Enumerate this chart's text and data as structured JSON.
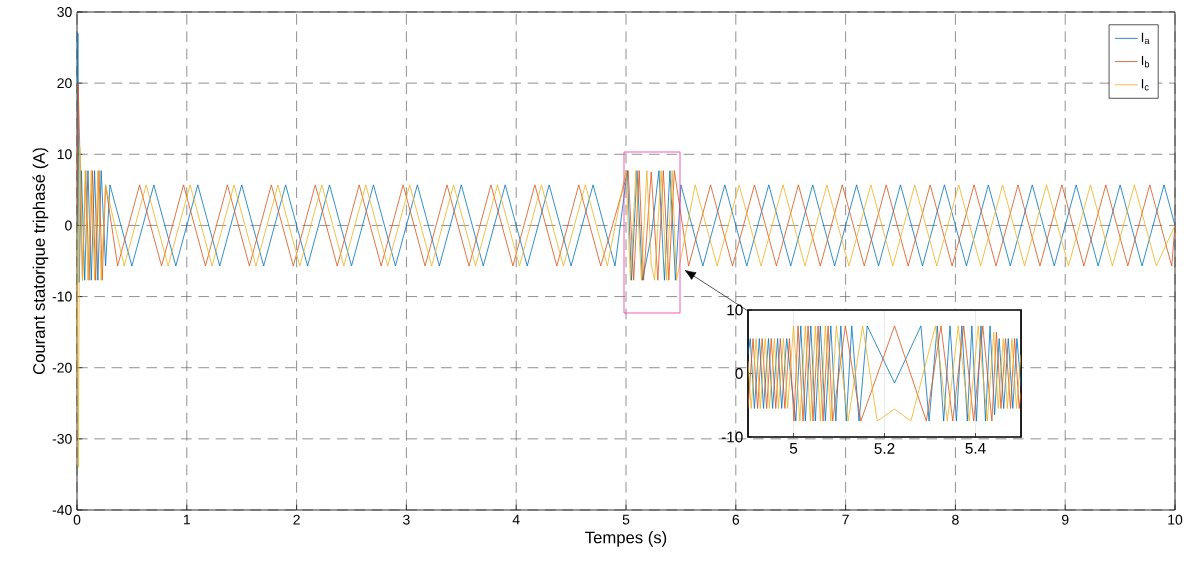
{
  "chart_data": [
    {
      "type": "line",
      "xlabel": "Tempes (s)",
      "ylabel": "Courant statorique triphasé (A)",
      "xlim": [
        0,
        10
      ],
      "xticks": [
        0,
        1,
        2,
        3,
        4,
        5,
        6,
        7,
        8,
        9,
        10
      ],
      "ylim": [
        -40,
        30
      ],
      "yticks": [
        -40,
        -30,
        -20,
        -10,
        0,
        10,
        20,
        30
      ],
      "grid": true,
      "legend": "top right",
      "series": [
        {
          "name": "I$_{a}$",
          "color": "#0072bd",
          "x": [
            0,
            0.008,
            0.02,
            0.04,
            0.07,
            0.1,
            0.13,
            0.16,
            0.19,
            0.22,
            0.26,
            0.3,
            0.5,
            0.7,
            0.9,
            1.1,
            1.3,
            1.5,
            1.7,
            1.9,
            2.1,
            2.3,
            2.5,
            2.7,
            2.9,
            3.1,
            3.3,
            3.5,
            3.7,
            3.9,
            4.1,
            4.3,
            4.5,
            4.7,
            4.9,
            5.012,
            5.05,
            5.1,
            5.15,
            5.23,
            5.3,
            5.35,
            5.4,
            5.45,
            5.5,
            5.7,
            5.9,
            6.1,
            6.3,
            6.5,
            6.7,
            6.9,
            7.1,
            7.3,
            7.5,
            7.7,
            7.9,
            8.1,
            8.3,
            8.5,
            8.7,
            8.9,
            9.1,
            9.3,
            9.5,
            9.7,
            9.9,
            10
          ],
          "values": [
            0,
            27,
            -8,
            7.7,
            -7.7,
            7.7,
            -7.7,
            7.7,
            -7.7,
            7.7,
            -5.7,
            5.7,
            -5.7,
            5.7,
            -5.7,
            5.7,
            -5.7,
            5.7,
            -5.7,
            5.7,
            -5.7,
            5.7,
            -5.7,
            5.7,
            -5.7,
            5.7,
            -5.7,
            5.7,
            -5.7,
            5.7,
            -5.7,
            5.7,
            -5.7,
            5.7,
            -5.7,
            7.7,
            -7.7,
            7.7,
            -7.7,
            -1.5,
            7.7,
            -7.7,
            7.7,
            -7.7,
            5.7,
            -5.7,
            5.7,
            -5.7,
            5.7,
            -5.7,
            5.7,
            -5.7,
            5.7,
            -5.7,
            5.7,
            -5.7,
            5.7,
            -5.7,
            5.7,
            -5.7,
            5.7,
            -5.7,
            5.7,
            -5.7,
            5.7,
            -5.7,
            5.7,
            0
          ]
        },
        {
          "name": "I$_{b}$",
          "color": "#d95319",
          "x": [
            0,
            0.01,
            0.03,
            0.05,
            0.08,
            0.11,
            0.14,
            0.17,
            0.2,
            0.23,
            0.26,
            0.37,
            0.57,
            0.77,
            0.97,
            1.17,
            1.37,
            1.57,
            1.77,
            1.97,
            2.17,
            2.37,
            2.57,
            2.77,
            2.97,
            3.17,
            3.37,
            3.57,
            3.77,
            3.97,
            4.17,
            4.37,
            4.57,
            4.77,
            5.02,
            5.07,
            5.12,
            5.16,
            5.23,
            5.29,
            5.34,
            5.39,
            5.44,
            5.57,
            5.77,
            5.97,
            6.17,
            6.37,
            6.57,
            6.77,
            6.97,
            7.17,
            7.37,
            7.57,
            7.77,
            7.97,
            8.17,
            8.37,
            8.57,
            8.77,
            8.97,
            9.17,
            9.37,
            9.57,
            9.77,
            9.97,
            10
          ],
          "values": [
            0,
            20,
            8,
            -7.7,
            7.7,
            -7.7,
            7.7,
            -7.7,
            7.7,
            -7.7,
            5.7,
            -5.7,
            5.7,
            -5.7,
            5.7,
            -5.7,
            5.7,
            -5.7,
            5.7,
            -5.7,
            5.7,
            -5.7,
            5.7,
            -5.7,
            5.7,
            -5.7,
            5.7,
            -5.7,
            5.7,
            -5.7,
            5.7,
            -5.7,
            5.7,
            -5.7,
            7.7,
            -7.7,
            7.7,
            -7.7,
            7.5,
            -7.7,
            7.7,
            -7.7,
            7.7,
            -5.7,
            5.7,
            -5.7,
            5.7,
            -5.7,
            5.7,
            -5.7,
            5.7,
            -5.7,
            5.7,
            -5.7,
            5.7,
            -5.7,
            5.7,
            -5.7,
            5.7,
            -5.7,
            5.7,
            -5.7,
            5.7,
            -5.7,
            5.7,
            -5.7,
            0
          ]
        },
        {
          "name": "I$_{c}$",
          "color": "#edb120",
          "x": [
            0,
            0.012,
            0.025,
            0.05,
            0.075,
            0.1,
            0.13,
            0.16,
            0.19,
            0.22,
            0.26,
            0.43,
            0.63,
            0.83,
            1.03,
            1.23,
            1.43,
            1.63,
            1.83,
            2.03,
            2.23,
            2.43,
            2.63,
            2.83,
            3.03,
            3.23,
            3.43,
            3.63,
            3.83,
            4.03,
            4.23,
            4.43,
            4.63,
            4.83,
            5.0,
            5.04,
            5.09,
            5.14,
            5.19,
            5.23,
            5.26,
            5.32,
            5.37,
            5.42,
            5.46,
            5.63,
            5.83,
            6.03,
            6.23,
            6.43,
            6.63,
            6.83,
            7.03,
            7.23,
            7.43,
            7.63,
            7.83,
            8.03,
            8.23,
            8.43,
            8.63,
            8.83,
            9.03,
            9.23,
            9.43,
            9.63,
            9.83,
            10
          ],
          "values": [
            0,
            -34,
            11,
            -7.7,
            7.7,
            -7.7,
            7.7,
            -7.7,
            7.7,
            -7.7,
            5.7,
            -5.7,
            5.7,
            -5.7,
            5.7,
            -5.7,
            5.7,
            -5.7,
            5.7,
            -5.7,
            5.7,
            -5.7,
            5.7,
            -5.7,
            5.7,
            -5.7,
            5.7,
            -5.7,
            5.7,
            -5.7,
            5.7,
            -5.7,
            5.7,
            -5.7,
            7.7,
            -7.7,
            7.7,
            -7.7,
            7.7,
            -5.5,
            -7.7,
            7.7,
            -7.7,
            7.7,
            -7.7,
            5.7,
            -5.7,
            5.7,
            -5.7,
            5.7,
            -5.7,
            5.7,
            -5.7,
            5.7,
            -5.7,
            5.7,
            -5.7,
            5.7,
            -5.7,
            5.7,
            -5.7,
            5.7,
            -5.7,
            5.7,
            -5.7,
            5.7,
            -5.7,
            0
          ]
        }
      ]
    },
    {
      "type": "line",
      "xlim": [
        4.9,
        5.5
      ],
      "xticks": [
        5,
        5.2,
        5.4
      ],
      "ylim": [
        -10,
        10
      ],
      "yticks": [
        -10,
        0,
        10
      ],
      "grid": true,
      "series": [
        {
          "color": "#0072bd",
          "x": [
            4.9,
            4.905,
            4.914,
            4.925,
            4.934,
            4.945,
            4.954,
            4.965,
            4.974,
            4.985,
            5.005,
            5.016,
            5.026,
            5.038,
            5.048,
            5.059,
            5.07,
            5.082,
            5.093,
            5.104,
            5.116,
            5.128,
            5.144,
            5.162,
            5.222,
            5.28,
            5.298,
            5.316,
            5.33,
            5.344,
            5.358,
            5.37,
            5.382,
            5.392,
            5.402,
            5.412,
            5.422,
            5.432,
            5.442,
            5.452,
            5.462,
            5.472,
            5.482,
            5.491,
            5.5
          ],
          "values": [
            3,
            5.5,
            -5.5,
            5.5,
            -5.5,
            5.5,
            -5.5,
            5.5,
            -5.5,
            5.5,
            -7.5,
            7.5,
            -7.5,
            7.5,
            -7.5,
            7.5,
            -7.5,
            7.5,
            -7.5,
            7.5,
            -7.5,
            7.5,
            -7.5,
            7.5,
            -1.5,
            7.5,
            -7.5,
            7.5,
            -7.5,
            7.5,
            -7.5,
            7.5,
            -7.5,
            7.5,
            -7.5,
            7.5,
            -7.5,
            7.5,
            -6.5,
            5.5,
            -5.5,
            5.5,
            -5.5,
            5.5,
            -2
          ]
        },
        {
          "color": "#d95319",
          "x": [
            4.9,
            4.911,
            4.921,
            4.931,
            4.941,
            4.951,
            4.961,
            4.971,
            4.981,
            4.991,
            5.001,
            5.01,
            5.021,
            5.032,
            5.043,
            5.054,
            5.065,
            5.076,
            5.086,
            5.114,
            5.148,
            5.222,
            5.292,
            5.324,
            5.35,
            5.374,
            5.396,
            5.416,
            5.436,
            5.446,
            5.456,
            5.466,
            5.477,
            5.486,
            5.496,
            5.5
          ],
          "values": [
            -5.5,
            5.5,
            -5.5,
            5.5,
            -5.5,
            5.5,
            -5.5,
            5.5,
            -5.5,
            5.5,
            -7.5,
            7.5,
            -7.5,
            7.5,
            -7.5,
            7.5,
            -7.5,
            7.5,
            -7.5,
            7.5,
            -7.5,
            7.5,
            -7.5,
            7.5,
            -7.5,
            7.5,
            -7.5,
            7.5,
            -7.5,
            6.5,
            -5.5,
            5.5,
            -5.5,
            5.5,
            -5.5,
            -3
          ]
        },
        {
          "color": "#edb120",
          "x": [
            4.9,
            4.907,
            4.918,
            4.927,
            4.938,
            4.947,
            4.958,
            4.967,
            4.978,
            4.987,
            5.0,
            5.014,
            5.026,
            5.037,
            5.048,
            5.059,
            5.07,
            5.082,
            5.094,
            5.12,
            5.152,
            5.184,
            5.222,
            5.258,
            5.312,
            5.338,
            5.362,
            5.386,
            5.406,
            5.426,
            5.44,
            5.45,
            5.461,
            5.47,
            5.48,
            5.49,
            5.5
          ],
          "values": [
            2,
            -5.5,
            5.5,
            -5.5,
            5.5,
            -5.5,
            5.5,
            -5.5,
            5.5,
            -5.5,
            7.5,
            -7.5,
            7.5,
            -7.5,
            7.5,
            -7.5,
            7.5,
            -7.5,
            7.5,
            -7.5,
            7.5,
            -7.5,
            -5.6,
            -7.5,
            7.5,
            -7.5,
            7.5,
            -7.5,
            7.5,
            -7.5,
            6.5,
            -5.5,
            5.5,
            -5.5,
            5.5,
            -5.5,
            3
          ]
        }
      ]
    }
  ]
}
